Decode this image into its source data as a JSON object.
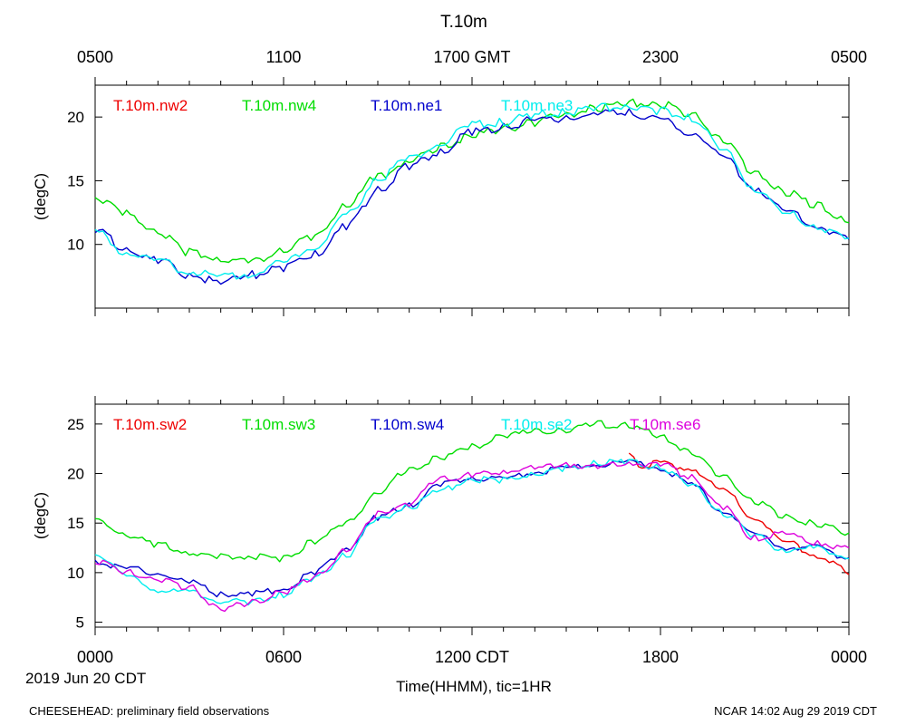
{
  "figure": {
    "title": "T.10m",
    "top_axis_ticks": [
      "0500",
      "1100",
      "1700 GMT",
      "2300",
      "0500"
    ],
    "bottom_axis_ticks": [
      "0000",
      "0600",
      "1200 CDT",
      "1800",
      "0000"
    ],
    "date_label": "2019 Jun 20 CDT",
    "xlabel": "Time(HHMM), tic=1HR",
    "footer_left": "CHEESEHEAD: preliminary field observations",
    "footer_right": "NCAR 14:02 Aug 29 2019 CDT",
    "colors": {
      "red": "#ee0000",
      "green": "#00dd00",
      "blue": "#0000cc",
      "cyan": "#00eeee",
      "magenta": "#dd00dd"
    }
  },
  "chart_data": [
    {
      "type": "line",
      "ylabel": "(degC)",
      "xlim": [
        0,
        24
      ],
      "ylim": [
        5,
        22.5
      ],
      "yticks": [
        10,
        15,
        20
      ],
      "grid": false,
      "legend": "top",
      "series": [
        {
          "name": "T.10m.nw2",
          "color": "#ee0000",
          "x": [],
          "y": []
        },
        {
          "name": "T.10m.nw4",
          "color": "#00dd00",
          "x": [
            0,
            1,
            2,
            3,
            4,
            5,
            6,
            7,
            8,
            9,
            10,
            11,
            12,
            13,
            14,
            15,
            16,
            17,
            18,
            19,
            20,
            21,
            22,
            23,
            24
          ],
          "y": [
            13.7,
            12.4,
            11.0,
            9.4,
            8.8,
            8.6,
            9.6,
            10.6,
            13.1,
            15.3,
            16.5,
            17.6,
            18.5,
            19.1,
            19.6,
            20.2,
            20.7,
            21.1,
            21.0,
            20.2,
            18.3,
            15.6,
            14.0,
            13.1,
            11.7
          ]
        },
        {
          "name": "T.10m.ne1",
          "color": "#0000cc",
          "x": [
            0,
            1,
            2,
            3,
            4,
            5,
            6,
            7,
            8,
            9,
            10,
            11,
            12,
            13,
            14,
            15,
            16,
            17,
            18,
            19,
            20,
            21,
            22,
            23,
            24
          ],
          "y": [
            11.1,
            9.6,
            8.7,
            7.6,
            7.0,
            7.6,
            8.2,
            9.2,
            11.4,
            14.2,
            16.1,
            17.3,
            18.8,
            19.2,
            19.8,
            19.9,
            20.2,
            20.4,
            19.7,
            18.8,
            16.8,
            14.5,
            12.5,
            11.4,
            10.4
          ]
        },
        {
          "name": "T.10m.ne3",
          "color": "#00eeee",
          "x": [
            0,
            1,
            2,
            3,
            4,
            5,
            6,
            7,
            8,
            9,
            10,
            11,
            12,
            13,
            14,
            15,
            16,
            17,
            18,
            19,
            20,
            21,
            22,
            23,
            24
          ],
          "y": [
            11.0,
            9.4,
            8.7,
            7.9,
            7.4,
            7.7,
            8.5,
            9.8,
            12.3,
            15.1,
            16.8,
            17.8,
            19.5,
            19.6,
            20.2,
            20.4,
            20.7,
            20.9,
            20.5,
            19.9,
            17.4,
            14.4,
            12.4,
            11.4,
            10.5
          ]
        }
      ]
    },
    {
      "type": "line",
      "ylabel": "(degC)",
      "xlim": [
        0,
        24
      ],
      "ylim": [
        4.5,
        27
      ],
      "yticks": [
        5,
        10,
        15,
        20,
        25
      ],
      "grid": false,
      "legend": "top",
      "series": [
        {
          "name": "T.10m.sw2",
          "color": "#ee0000",
          "x": [
            17.0,
            17.3,
            18,
            19,
            20,
            21,
            22,
            23,
            23.5,
            24
          ],
          "y": [
            22.0,
            20.8,
            21.0,
            20.5,
            18.2,
            15.5,
            13.0,
            11.8,
            11.0,
            9.8
          ]
        },
        {
          "name": "T.10m.sw3",
          "color": "#00dd00",
          "x": [
            0,
            1,
            2,
            3,
            4,
            5,
            6,
            7,
            8,
            9,
            10,
            11,
            12,
            13,
            14,
            15,
            16,
            17,
            18,
            19,
            20,
            21,
            22,
            23,
            24
          ],
          "y": [
            15.2,
            13.8,
            12.8,
            12.0,
            11.6,
            11.6,
            11.4,
            13.2,
            15.0,
            18.0,
            20.5,
            21.7,
            22.7,
            23.8,
            24.2,
            24.4,
            25.0,
            24.8,
            23.8,
            22.0,
            19.7,
            17.2,
            15.6,
            14.9,
            14.0
          ]
        },
        {
          "name": "T.10m.sw4",
          "color": "#0000cc",
          "x": [
            0,
            1,
            2,
            3,
            4,
            5,
            6,
            7,
            8,
            9,
            10,
            11,
            12,
            13,
            14,
            15,
            16,
            17,
            18,
            19,
            20,
            21,
            22,
            23,
            24
          ],
          "y": [
            11.1,
            10.5,
            9.8,
            9.0,
            7.8,
            7.9,
            8.3,
            10.0,
            12.4,
            15.6,
            16.8,
            18.9,
            19.5,
            19.4,
            20.2,
            20.6,
            21.0,
            21.1,
            20.6,
            18.8,
            16.2,
            13.9,
            12.6,
            12.5,
            11.5
          ]
        },
        {
          "name": "T.10m.se2",
          "color": "#00eeee",
          "x": [
            0,
            1,
            2,
            3,
            4,
            5,
            6,
            7,
            8,
            9,
            10,
            11,
            12,
            13,
            14,
            15,
            16,
            17,
            18,
            19,
            20,
            21,
            22,
            23,
            24
          ],
          "y": [
            12.0,
            9.6,
            8.3,
            8.0,
            7.1,
            7.0,
            7.8,
            9.5,
            11.8,
            15.4,
            16.6,
            18.3,
            19.4,
            19.3,
            20.1,
            20.5,
            21.0,
            21.2,
            20.6,
            18.8,
            16.0,
            13.7,
            12.2,
            12.5,
            11.4
          ]
        },
        {
          "name": "T.10m.se6",
          "color": "#dd00dd",
          "x": [
            0,
            1,
            2,
            3,
            4,
            5,
            6,
            7,
            8,
            9,
            10,
            11,
            12,
            13,
            14,
            15,
            16,
            17,
            18,
            19,
            20,
            21,
            22,
            23,
            24
          ],
          "y": [
            11.2,
            10.0,
            9.3,
            8.5,
            6.3,
            7.0,
            8.0,
            9.6,
            12.2,
            15.9,
            17.0,
            19.5,
            19.8,
            20.2,
            20.5,
            21.0,
            20.6,
            21.0,
            20.9,
            19.6,
            16.5,
            13.5,
            13.9,
            13.0,
            12.5
          ]
        }
      ]
    }
  ]
}
